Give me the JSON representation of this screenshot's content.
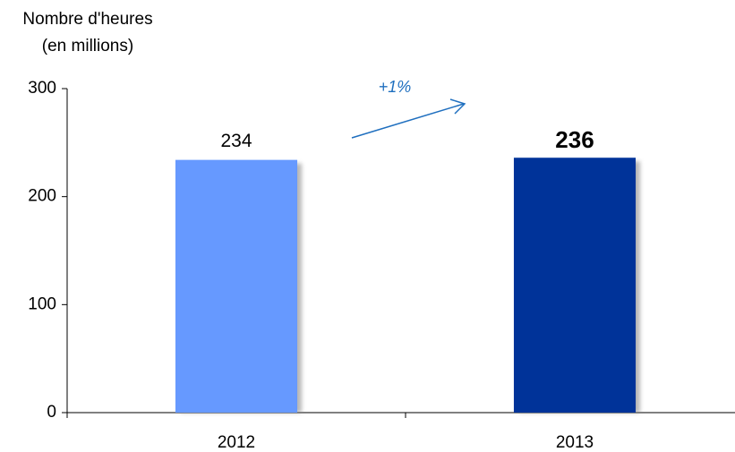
{
  "chart_data": {
    "type": "bar",
    "y_axis_label": [
      "Nombre d'heures",
      "(en millions)"
    ],
    "categories": [
      "2012",
      "2013"
    ],
    "values": [
      234,
      236
    ],
    "colors": [
      "#6699ff",
      "#003399"
    ],
    "highlight": [
      false,
      true
    ],
    "ylim": [
      0,
      300
    ],
    "yticks": [
      0,
      100,
      200,
      300
    ],
    "annotation": "+1%",
    "grid": false
  }
}
